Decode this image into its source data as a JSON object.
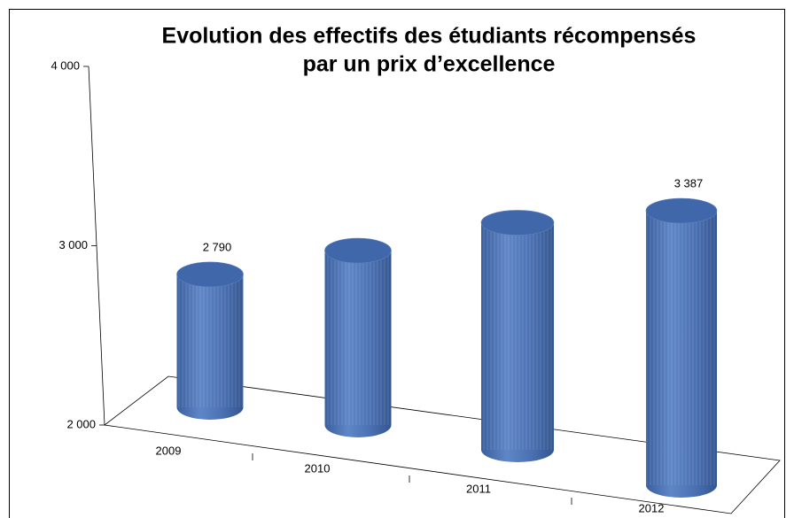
{
  "chart_data": {
    "type": "cylinder",
    "title": [
      "Evolution des effectifs des étudiants récompensés",
      "par un prix d’excellence"
    ],
    "categories": [
      "2009",
      "2010",
      "2011",
      "2012"
    ],
    "values": [
      2790,
      2980,
      3210,
      3387
    ],
    "value_labels": [
      "2 790",
      null,
      null,
      "3 387"
    ],
    "color": "#4a70b2",
    "ylim": [
      2000,
      4000
    ],
    "yticks": [
      {
        "value": 2000,
        "label": "2 000"
      },
      {
        "value": 3000,
        "label": "3 000"
      },
      {
        "value": 4000,
        "label": "4 000"
      }
    ]
  }
}
